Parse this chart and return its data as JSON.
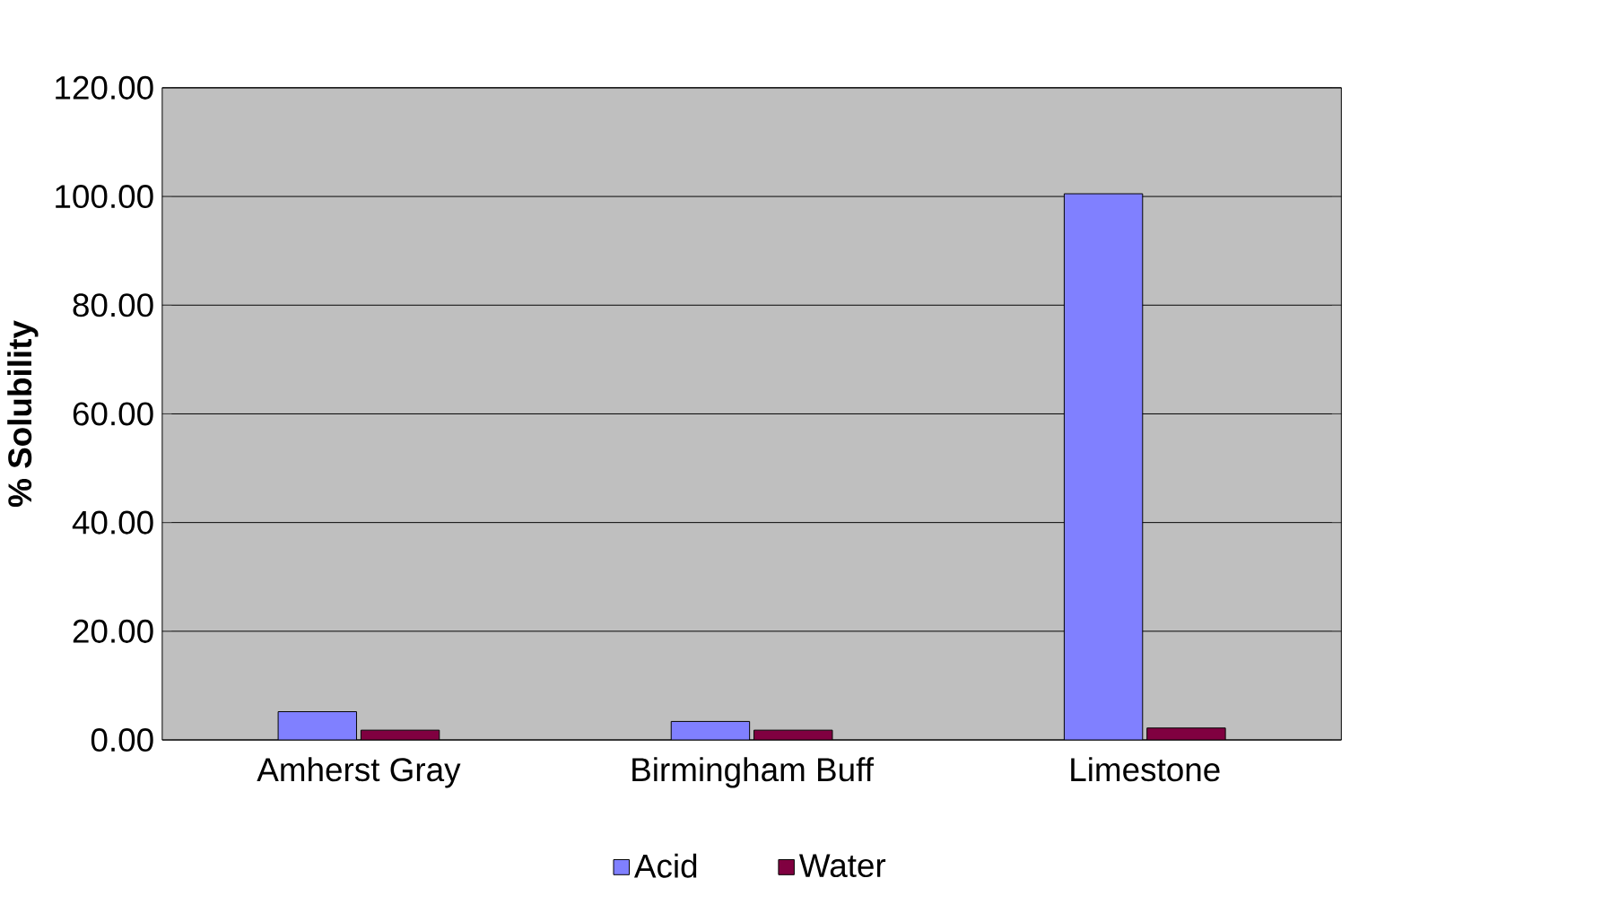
{
  "chart_data": {
    "type": "bar",
    "ylabel": "% Solubility",
    "categories": [
      "Amherst Gray",
      "Birmingham Buff",
      "Limestone"
    ],
    "series": [
      {
        "name": "Acid",
        "color": "#8080ff",
        "values": [
          5.2,
          3.4,
          100.5
        ]
      },
      {
        "name": "Water",
        "color": "#800040",
        "values": [
          1.8,
          1.8,
          2.2
        ]
      }
    ],
    "ylim": [
      0,
      120
    ],
    "yticks": [
      {
        "value": 0,
        "label": "0.00"
      },
      {
        "value": 20,
        "label": "20.00"
      },
      {
        "value": 40,
        "label": "40.00"
      },
      {
        "value": 60,
        "label": "60.00"
      },
      {
        "value": 80,
        "label": "80.00"
      },
      {
        "value": 100,
        "label": "100.00"
      },
      {
        "value": 120,
        "label": "120.00"
      }
    ],
    "grid": "y",
    "legend": "bottom"
  }
}
